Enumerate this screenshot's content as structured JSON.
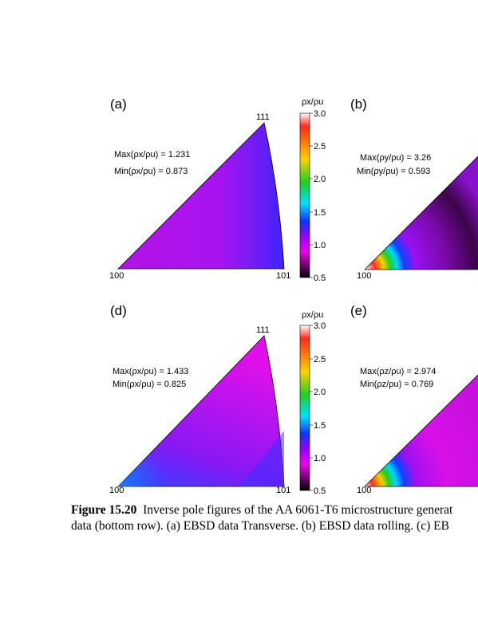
{
  "panels": [
    {
      "label": "(a)",
      "corner_100": "100",
      "corner_101": "101",
      "corner_111": "111",
      "max_text": "Max(ρx/ρu) = 1.231",
      "min_text": "Min(ρx/ρu) = 0.873"
    },
    {
      "label": "(b)",
      "corner_100": "100",
      "max_text": "Max(ρy/ρu) = 3.26",
      "min_text": "Min(ρy/ρu) = 0.593"
    },
    {
      "label": "(d)",
      "corner_100": "100",
      "corner_101": "101",
      "corner_111": "111",
      "max_text": "Max(ρx/ρu) = 1.433",
      "min_text": "Min(ρx/ρu) = 0.825"
    },
    {
      "label": "(e)",
      "corner_100": "100",
      "max_text": "Max(ρz/ρu) = 2.974",
      "min_text": "Min(ρz/ρu) = 0.769"
    }
  ],
  "colorbars": [
    {
      "title": "ρx/ρu",
      "ticks": [
        "3.0",
        "2.5",
        "2.0",
        "1.5",
        "1.0",
        "0.5"
      ]
    },
    {
      "title": "ρx/ρu",
      "ticks": [
        "3.0",
        "2.5",
        "2.0",
        "1.5",
        "1.0",
        "0.5"
      ]
    }
  ],
  "colors": {
    "colormap": [
      "#ffffff",
      "#ff2a1a",
      "#ffd000",
      "#20d020",
      "#00e0ff",
      "#1030ff",
      "#a000ff",
      "#ee00ee",
      "#000000"
    ],
    "triangle_a": "#b40fe6",
    "triangle_d": "#c811e8"
  },
  "caption": {
    "figure_number": "Figure 15.20",
    "line1": "Inverse pole figures of the AA 6061-T6 microstructure generat",
    "line2": "data (bottom row). (a) EBSD data Transverse. (b) EBSD data rolling. (c) EB"
  }
}
